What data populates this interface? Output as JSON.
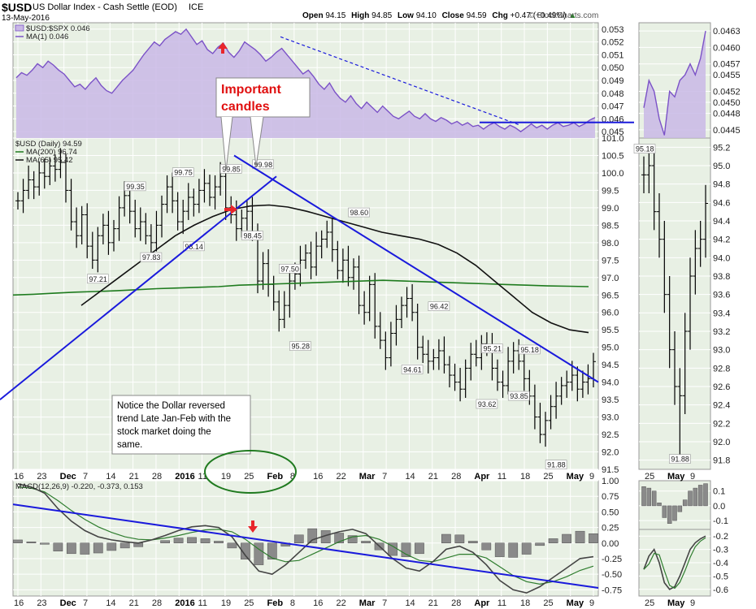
{
  "header": {
    "symbol": "$USD",
    "name": "US Dollar Index - Cash Settle (EOD)",
    "exchange": "ICE",
    "date": "13-May-2016",
    "open_label": "Open",
    "open": "94.15",
    "high_label": "High",
    "high": "94.85",
    "low_label": "Low",
    "low": "94.10",
    "close_label": "Close",
    "close": "94.59",
    "chg_label": "Chg",
    "chg": "+0.47 (+0.49%)",
    "watermark": "© StockCharts.com"
  },
  "colors": {
    "price_line": "#000000",
    "ma200": "#1e7b1e",
    "ma65": "#111111",
    "ratio": "#7b52c7",
    "ratio_fill": "#c9b8e6",
    "trendline": "#1a1adc",
    "arrow": "#e8262b",
    "annotation_red": "#e01010",
    "histogram": "#8a8a8a",
    "signal": "#2e7d2e"
  },
  "chart_data": [
    {
      "type": "area",
      "panel": "ratio",
      "legend": [
        "$USD:$SPX 0.046",
        "MA(1) 0.046"
      ],
      "yticks": [
        "0.053",
        "0.052",
        "0.051",
        "0.050",
        "0.049",
        "0.048",
        "0.047",
        "0.046",
        "0.045"
      ],
      "ylim": [
        0.0445,
        0.0535
      ],
      "values": [
        0.0492,
        0.0496,
        0.0494,
        0.0498,
        0.0503,
        0.05,
        0.0505,
        0.0502,
        0.0498,
        0.0495,
        0.049,
        0.0485,
        0.0487,
        0.0483,
        0.0488,
        0.0492,
        0.0486,
        0.0482,
        0.048,
        0.0485,
        0.049,
        0.0494,
        0.0498,
        0.0504,
        0.051,
        0.0515,
        0.052,
        0.0517,
        0.0522,
        0.0525,
        0.0528,
        0.0526,
        0.053,
        0.0524,
        0.0518,
        0.0521,
        0.0514,
        0.0511,
        0.0516,
        0.0519,
        0.0512,
        0.0508,
        0.0513,
        0.052,
        0.0517,
        0.0514,
        0.051,
        0.0505,
        0.0508,
        0.0512,
        0.0515,
        0.051,
        0.0505,
        0.05,
        0.0495,
        0.0498,
        0.0493,
        0.0487,
        0.0483,
        0.0488,
        0.0481,
        0.0476,
        0.0473,
        0.0478,
        0.0472,
        0.0468,
        0.0473,
        0.0469,
        0.0465,
        0.047,
        0.0466,
        0.0462,
        0.046,
        0.0463,
        0.0466,
        0.0462,
        0.046,
        0.0464,
        0.046,
        0.0458,
        0.0461,
        0.0459,
        0.0456,
        0.0458,
        0.0455,
        0.0457,
        0.0454,
        0.0455,
        0.0452,
        0.0455,
        0.0457,
        0.0454,
        0.0452,
        0.0455,
        0.0453,
        0.045,
        0.0453,
        0.0456,
        0.0453,
        0.0455,
        0.0452,
        0.0455,
        0.0457,
        0.0454,
        0.0455,
        0.0457,
        0.0454,
        0.0456,
        0.0459,
        0.0461
      ]
    },
    {
      "type": "ohlc",
      "panel": "price",
      "legend": [
        "$USD (Daily) 94.59",
        "MA(200) 96.74",
        "MA(65) 95.42"
      ],
      "yticks": [
        "101.0",
        "100.5",
        "100.0",
        "99.5",
        "99.0",
        "98.5",
        "98.0",
        "97.5",
        "97.0",
        "96.5",
        "96.0",
        "95.5",
        "95.0",
        "94.5",
        "94.0",
        "93.5",
        "93.0",
        "92.5",
        "92.0",
        "91.5"
      ],
      "ylim": [
        91.5,
        101.0
      ],
      "x_labels": [
        "16",
        "23",
        "Dec",
        "7",
        "14",
        "21",
        "28",
        "2016",
        "11",
        "19",
        "25",
        "Feb",
        "8",
        "16",
        "22",
        "Mar",
        "7",
        "14",
        "21",
        "28",
        "Apr",
        "11",
        "18",
        "25",
        "May",
        "9"
      ],
      "closes": [
        99.2,
        99.5,
        99.8,
        99.6,
        100.0,
        99.9,
        100.2,
        100.1,
        100.3,
        99.5,
        98.6,
        98.2,
        98.8,
        97.9,
        97.5,
        98.2,
        98.5,
        98.0,
        98.4,
        99.0,
        99.35,
        98.9,
        98.4,
        98.6,
        98.2,
        98.0,
        98.5,
        99.1,
        99.6,
        99.2,
        98.6,
        98.9,
        99.3,
        99.1,
        99.5,
        99.7,
        99.3,
        99.6,
        99.9,
        99.0,
        98.8,
        98.4,
        98.7,
        98.9,
        98.3,
        96.9,
        97.4,
        96.8,
        96.3,
        95.8,
        96.2,
        96.9,
        97.1,
        97.5,
        97.7,
        97.3,
        97.9,
        98.1,
        98.3,
        97.8,
        97.2,
        97.5,
        97.0,
        97.3,
        96.2,
        96.0,
        96.8,
        95.6,
        95.2,
        94.7,
        95.4,
        95.8,
        96.2,
        96.4,
        96.0,
        95.0,
        94.8,
        94.6,
        94.7,
        94.9,
        94.5,
        94.2,
        94.0,
        93.8,
        94.4,
        94.8,
        94.7,
        95.1,
        95.0,
        94.4,
        94.0,
        93.9,
        94.6,
        94.9,
        94.6,
        94.1,
        93.6,
        93.0,
        92.5,
        92.9,
        93.3,
        93.6,
        93.9,
        94.0,
        94.2,
        93.8,
        94.0,
        94.1,
        94.59
      ],
      "ma200": [
        96.5,
        96.52,
        96.55,
        96.58,
        96.6,
        96.62,
        96.65,
        96.68,
        96.7,
        96.72,
        96.74,
        96.78,
        96.8,
        96.82,
        96.84,
        96.86,
        96.88,
        96.9,
        96.92,
        96.9,
        96.88,
        96.86,
        96.84,
        96.82,
        96.8,
        96.78,
        96.76,
        96.75,
        96.74
      ],
      "ma65": [
        96.2,
        96.6,
        97.0,
        97.4,
        97.8,
        98.2,
        98.5,
        98.75,
        98.95,
        99.05,
        99.08,
        99.02,
        98.9,
        98.75,
        98.6,
        98.45,
        98.3,
        98.2,
        98.1,
        97.95,
        97.7,
        97.35,
        96.9,
        96.45,
        96.0,
        95.7,
        95.5,
        95.42
      ],
      "price_labels": [
        {
          "text": "99.35",
          "x": 22,
          "y": 99.35
        },
        {
          "text": "99.75",
          "x": 31,
          "y": 99.75
        },
        {
          "text": "97.21",
          "x": 15,
          "y": 97.21
        },
        {
          "text": "97.83",
          "x": 25,
          "y": 97.83
        },
        {
          "text": "98.14",
          "x": 33,
          "y": 98.14
        },
        {
          "text": "99.85",
          "x": 40,
          "y": 99.85
        },
        {
          "text": "99.98",
          "x": 46,
          "y": 99.98
        },
        {
          "text": "98.45",
          "x": 44,
          "y": 98.45
        },
        {
          "text": "97.50",
          "x": 51,
          "y": 97.5
        },
        {
          "text": "95.28",
          "x": 53,
          "y": 95.28
        },
        {
          "text": "98.60",
          "x": 64,
          "y": 98.6
        },
        {
          "text": "96.42",
          "x": 79,
          "y": 96.42
        },
        {
          "text": "94.61",
          "x": 74,
          "y": 94.61
        },
        {
          "text": "95.21",
          "x": 89,
          "y": 95.21
        },
        {
          "text": "95.18",
          "x": 96,
          "y": 95.18
        },
        {
          "text": "93.62",
          "x": 88,
          "y": 93.62
        },
        {
          "text": "93.85",
          "x": 94,
          "y": 93.85
        },
        {
          "text": "91.88",
          "x": 101,
          "y": 91.88
        }
      ]
    },
    {
      "type": "bar",
      "panel": "macd",
      "legend": [
        "MACD(12,26,9) -0.220, -0.373, 0.153"
      ],
      "yticks": [
        "1.00",
        "0.75",
        "0.50",
        "0.25",
        "0.00",
        "-0.25",
        "-0.50",
        "-0.75"
      ],
      "ylim": [
        -0.85,
        1.0
      ],
      "macd": [
        0.95,
        0.9,
        0.8,
        0.55,
        0.35,
        0.2,
        0.1,
        0.05,
        0.02,
        0.0,
        0.05,
        0.12,
        0.2,
        0.26,
        0.28,
        0.25,
        0.1,
        -0.2,
        -0.45,
        -0.5,
        -0.35,
        -0.15,
        0.05,
        0.12,
        0.18,
        0.22,
        0.15,
        -0.05,
        -0.25,
        -0.4,
        -0.45,
        -0.3,
        -0.1,
        -0.05,
        -0.15,
        -0.35,
        -0.6,
        -0.75,
        -0.8,
        -0.7,
        -0.55,
        -0.4,
        -0.25,
        -0.22
      ],
      "signal": [
        0.9,
        0.88,
        0.82,
        0.68,
        0.52,
        0.38,
        0.26,
        0.17,
        0.1,
        0.06,
        0.05,
        0.08,
        0.12,
        0.17,
        0.21,
        0.22,
        0.18,
        0.06,
        -0.1,
        -0.24,
        -0.3,
        -0.28,
        -0.18,
        -0.08,
        0.02,
        0.1,
        0.12,
        0.06,
        -0.05,
        -0.18,
        -0.28,
        -0.3,
        -0.24,
        -0.18,
        -0.18,
        -0.24,
        -0.38,
        -0.52,
        -0.62,
        -0.66,
        -0.62,
        -0.54,
        -0.44,
        -0.37
      ],
      "histogram": [
        0.05,
        0.02,
        -0.02,
        -0.13,
        -0.17,
        -0.18,
        -0.16,
        -0.12,
        -0.08,
        -0.06,
        0.0,
        0.04,
        0.08,
        0.09,
        0.07,
        0.03,
        -0.08,
        -0.26,
        -0.35,
        -0.26,
        -0.05,
        0.13,
        0.23,
        0.2,
        0.16,
        0.12,
        0.03,
        -0.11,
        -0.2,
        -0.22,
        -0.17,
        0.0,
        0.14,
        0.13,
        0.03,
        -0.11,
        -0.22,
        -0.23,
        -0.18,
        -0.04,
        0.07,
        0.14,
        0.19,
        0.15
      ]
    },
    {
      "type": "line",
      "panel": "zoom",
      "ratio_yticks": [
        "0.0463",
        "0.0460",
        "0.0457",
        "0.0455",
        "0.0452",
        "0.0450",
        "0.0448",
        "0.0445"
      ],
      "ratio_values": [
        0.0449,
        0.0454,
        0.0452,
        0.0447,
        0.0444,
        0.0452,
        0.0451,
        0.0454,
        0.0455,
        0.0457,
        0.0455,
        0.0458,
        0.0463
      ],
      "price_yticks": [
        "95.2",
        "95.0",
        "94.8",
        "94.6",
        "94.4",
        "94.2",
        "94.0",
        "93.8",
        "93.6",
        "93.4",
        "93.2",
        "93.0",
        "92.8",
        "92.6",
        "92.4",
        "92.2",
        "92.0",
        "91.8"
      ],
      "price_label": "95.18",
      "low_label": "91.88",
      "price_values": [
        94.9,
        95.0,
        94.5,
        94.2,
        93.6,
        93.0,
        92.6,
        92.5,
        93.2,
        93.8,
        94.1,
        94.2,
        94.59
      ],
      "macd_hist_yticks": [
        "0.1",
        "0.0",
        "-0.1"
      ],
      "macd_hist": [
        0.13,
        0.12,
        0.1,
        0.02,
        -0.08,
        -0.12,
        -0.1,
        -0.04,
        0.04,
        0.1,
        0.12,
        0.14,
        0.15
      ],
      "macd_yticks": [
        "-0.2",
        "-0.3",
        "-0.4",
        "-0.5",
        "-0.6"
      ],
      "macd_values": [
        -0.45,
        -0.35,
        -0.3,
        -0.4,
        -0.55,
        -0.6,
        -0.58,
        -0.5,
        -0.4,
        -0.3,
        -0.25,
        -0.22,
        -0.2
      ],
      "x_labels": [
        "25",
        "May",
        "9"
      ]
    }
  ],
  "annotations": {
    "important_candles": [
      "Important",
      "candles"
    ],
    "note": [
      "Notice the Dollar reversed",
      "trend Late Jan-Feb with the",
      "stock market doing the",
      "same."
    ]
  }
}
